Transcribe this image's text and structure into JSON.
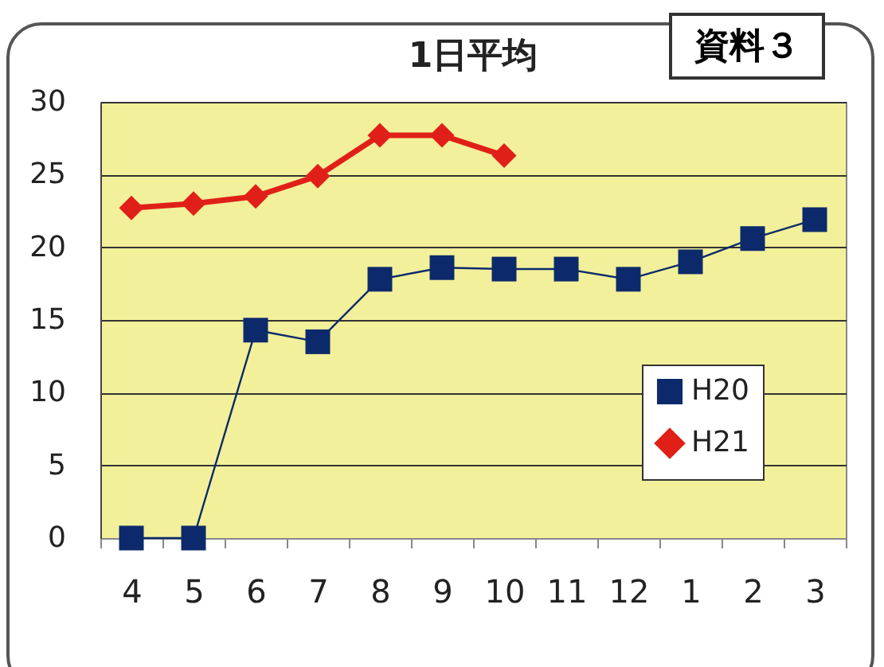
{
  "chart_data": {
    "type": "line",
    "title": "1日平均",
    "annotations": [
      "資料３"
    ],
    "categories": [
      "4",
      "5",
      "6",
      "7",
      "8",
      "9",
      "10",
      "11",
      "12",
      "1",
      "2",
      "3"
    ],
    "series": [
      {
        "name": "H20",
        "color": "#0c2a6b",
        "marker": "square",
        "values": [
          0,
          0,
          14.3,
          13.5,
          17.8,
          18.6,
          18.5,
          18.5,
          17.8,
          19.0,
          20.6,
          21.9
        ]
      },
      {
        "name": "H21",
        "color": "#e02018",
        "marker": "diamond",
        "values": [
          22.7,
          23.0,
          23.5,
          24.9,
          27.7,
          27.7,
          26.3,
          null,
          null,
          null,
          null,
          null
        ]
      }
    ],
    "ylim": [
      0,
      30
    ],
    "yticks": [
      0,
      5,
      10,
      15,
      20,
      25,
      30
    ],
    "grid": "y",
    "legend": "bottom right"
  }
}
